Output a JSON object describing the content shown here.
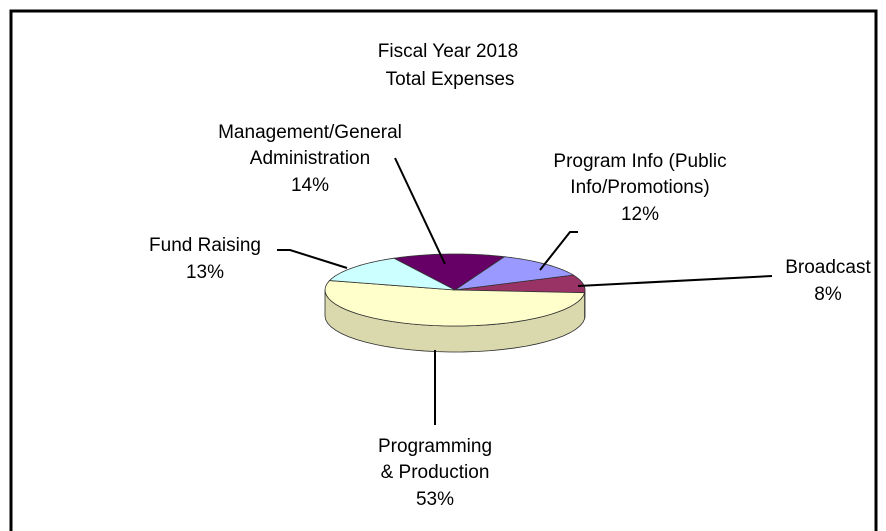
{
  "chart_data": {
    "type": "pie",
    "title": "Fiscal Year 2018",
    "subtitle": "Total Expenses",
    "categories": [
      "Management/General\nAdministration",
      "Program Info (Public\nInfo/Promotions)",
      "Broadcast",
      "Programming\n& Production",
      "Fund Raising"
    ],
    "values": [
      14,
      12,
      8,
      53,
      13
    ],
    "value_labels": [
      "14%",
      "12%",
      "8%",
      "53%",
      "13%"
    ],
    "colors": [
      "#660066",
      "#9999ff",
      "#993366",
      "#ffffcc",
      "#ccffff"
    ]
  }
}
